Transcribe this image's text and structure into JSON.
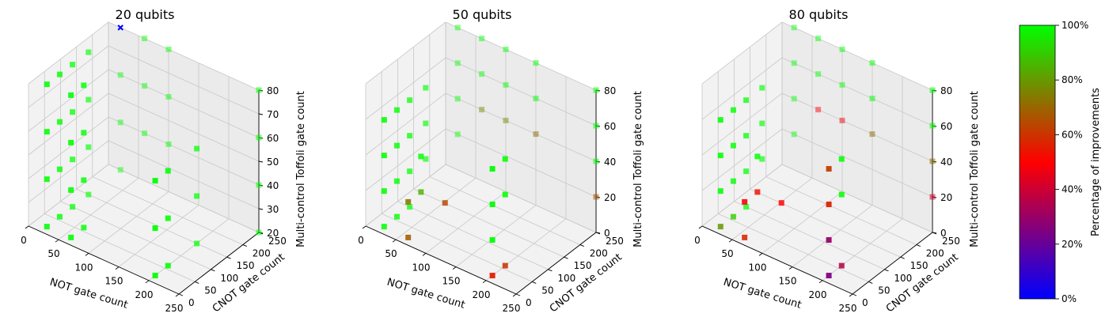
{
  "colorbar": {
    "label": "Percentage of improvements",
    "ticks": [
      "0%",
      "20%",
      "40%",
      "60%",
      "80%",
      "100%"
    ],
    "stops": [
      "#0000ff",
      "#ff0000",
      "#00ff00"
    ]
  },
  "chart_data": [
    {
      "type": "scatter3d",
      "title": "20 qubits",
      "xlabel": "NOT gate count",
      "ylabel": "CNOT gate count",
      "zlabel": "Multi-control Toffoli gate count",
      "xticks": [
        0,
        50,
        100,
        150,
        200,
        250
      ],
      "yticks": [
        0,
        50,
        100,
        150,
        200,
        250
      ],
      "zticks": [
        20,
        30,
        40,
        50,
        60,
        70,
        80
      ],
      "xlim": [
        0,
        250
      ],
      "ylim": [
        0,
        250
      ],
      "zlim": [
        20,
        80
      ],
      "grid": true,
      "note": "Marker color encodes percentage of improvements (colorbar); one point marked with x",
      "points": [
        {
          "x": 20,
          "y": 20,
          "z": 20,
          "pct": 100
        },
        {
          "x": 20,
          "y": 20,
          "z": 40,
          "pct": 100
        },
        {
          "x": 20,
          "y": 20,
          "z": 60,
          "pct": 100
        },
        {
          "x": 20,
          "y": 20,
          "z": 80,
          "pct": 100
        },
        {
          "x": 20,
          "y": 60,
          "z": 20,
          "pct": 100
        },
        {
          "x": 20,
          "y": 60,
          "z": 40,
          "pct": 100
        },
        {
          "x": 20,
          "y": 60,
          "z": 60,
          "pct": 100
        },
        {
          "x": 20,
          "y": 60,
          "z": 80,
          "pct": 100
        },
        {
          "x": 20,
          "y": 100,
          "z": 20,
          "pct": 100
        },
        {
          "x": 20,
          "y": 100,
          "z": 40,
          "pct": 100
        },
        {
          "x": 20,
          "y": 100,
          "z": 60,
          "pct": 100
        },
        {
          "x": 20,
          "y": 100,
          "z": 80,
          "pct": 100
        },
        {
          "x": 20,
          "y": 150,
          "z": 20,
          "pct": 100
        },
        {
          "x": 20,
          "y": 150,
          "z": 40,
          "pct": 100
        },
        {
          "x": 20,
          "y": 150,
          "z": 60,
          "pct": 100
        },
        {
          "x": 20,
          "y": 150,
          "z": 80,
          "pct": 100
        },
        {
          "x": 20,
          "y": 250,
          "z": 20,
          "pct": 100
        },
        {
          "x": 20,
          "y": 250,
          "z": 40,
          "pct": 100
        },
        {
          "x": 20,
          "y": 250,
          "z": 60,
          "pct": 100
        },
        {
          "x": 20,
          "y": 250,
          "z": 80,
          "pct": 100,
          "marker": "x",
          "color": "#0000ff"
        },
        {
          "x": 60,
          "y": 20,
          "z": 20,
          "pct": 100
        },
        {
          "x": 60,
          "y": 20,
          "z": 40,
          "pct": 100
        },
        {
          "x": 60,
          "y": 20,
          "z": 60,
          "pct": 100
        },
        {
          "x": 60,
          "y": 20,
          "z": 80,
          "pct": 100
        },
        {
          "x": 60,
          "y": 60,
          "z": 20,
          "pct": 100
        },
        {
          "x": 60,
          "y": 60,
          "z": 40,
          "pct": 100
        },
        {
          "x": 60,
          "y": 60,
          "z": 60,
          "pct": 100
        },
        {
          "x": 60,
          "y": 60,
          "z": 80,
          "pct": 100
        },
        {
          "x": 60,
          "y": 250,
          "z": 40,
          "pct": 100
        },
        {
          "x": 60,
          "y": 250,
          "z": 60,
          "pct": 100
        },
        {
          "x": 60,
          "y": 250,
          "z": 80,
          "pct": 100
        },
        {
          "x": 100,
          "y": 250,
          "z": 40,
          "pct": 100
        },
        {
          "x": 100,
          "y": 250,
          "z": 60,
          "pct": 100
        },
        {
          "x": 100,
          "y": 250,
          "z": 80,
          "pct": 100
        },
        {
          "x": 200,
          "y": 20,
          "z": 20,
          "pct": 100
        },
        {
          "x": 200,
          "y": 20,
          "z": 40,
          "pct": 100
        },
        {
          "x": 200,
          "y": 20,
          "z": 60,
          "pct": 100
        },
        {
          "x": 200,
          "y": 60,
          "z": 20,
          "pct": 100
        },
        {
          "x": 200,
          "y": 60,
          "z": 40,
          "pct": 100
        },
        {
          "x": 200,
          "y": 60,
          "z": 60,
          "pct": 100
        },
        {
          "x": 200,
          "y": 150,
          "z": 20,
          "pct": 100
        },
        {
          "x": 200,
          "y": 150,
          "z": 40,
          "pct": 100
        },
        {
          "x": 200,
          "y": 150,
          "z": 60,
          "pct": 100
        },
        {
          "x": 250,
          "y": 250,
          "z": 20,
          "pct": 100
        },
        {
          "x": 250,
          "y": 250,
          "z": 40,
          "pct": 100
        },
        {
          "x": 250,
          "y": 250,
          "z": 60,
          "pct": 100
        },
        {
          "x": 250,
          "y": 250,
          "z": 80,
          "pct": 100
        }
      ]
    },
    {
      "type": "scatter3d",
      "title": "50 qubits",
      "xlabel": "NOT gate count",
      "ylabel": "CNOT gate count",
      "zlabel": "Multi-control Toffoli gate count",
      "xticks": [
        0,
        50,
        100,
        150,
        200,
        250
      ],
      "yticks": [
        0,
        50,
        100,
        150,
        200,
        250
      ],
      "zticks": [
        0,
        20,
        40,
        60,
        80
      ],
      "xlim": [
        0,
        250
      ],
      "ylim": [
        0,
        250
      ],
      "zlim": [
        0,
        80
      ],
      "grid": true,
      "points": [
        {
          "x": 20,
          "y": 20,
          "z": 0,
          "pct": 100
        },
        {
          "x": 20,
          "y": 20,
          "z": 20,
          "pct": 100
        },
        {
          "x": 20,
          "y": 20,
          "z": 40,
          "pct": 100
        },
        {
          "x": 20,
          "y": 20,
          "z": 60,
          "pct": 100
        },
        {
          "x": 20,
          "y": 60,
          "z": 0,
          "pct": 100
        },
        {
          "x": 20,
          "y": 60,
          "z": 20,
          "pct": 100
        },
        {
          "x": 20,
          "y": 60,
          "z": 40,
          "pct": 100
        },
        {
          "x": 20,
          "y": 60,
          "z": 60,
          "pct": 100
        },
        {
          "x": 20,
          "y": 100,
          "z": 0,
          "pct": 100
        },
        {
          "x": 20,
          "y": 100,
          "z": 20,
          "pct": 100
        },
        {
          "x": 20,
          "y": 100,
          "z": 40,
          "pct": 100
        },
        {
          "x": 20,
          "y": 100,
          "z": 60,
          "pct": 100
        },
        {
          "x": 20,
          "y": 150,
          "z": 20,
          "pct": 100
        },
        {
          "x": 20,
          "y": 150,
          "z": 40,
          "pct": 100
        },
        {
          "x": 20,
          "y": 150,
          "z": 60,
          "pct": 100
        },
        {
          "x": 20,
          "y": 250,
          "z": 20,
          "pct": 100
        },
        {
          "x": 20,
          "y": 250,
          "z": 40,
          "pct": 100
        },
        {
          "x": 20,
          "y": 250,
          "z": 60,
          "pct": 100
        },
        {
          "x": 20,
          "y": 250,
          "z": 80,
          "pct": 100
        },
        {
          "x": 60,
          "y": 20,
          "z": 0,
          "pct": 68
        },
        {
          "x": 60,
          "y": 20,
          "z": 20,
          "pct": 74
        },
        {
          "x": 60,
          "y": 60,
          "z": 20,
          "pct": 85
        },
        {
          "x": 60,
          "y": 60,
          "z": 40,
          "pct": 100
        },
        {
          "x": 60,
          "y": 250,
          "z": 40,
          "pct": 78
        },
        {
          "x": 60,
          "y": 250,
          "z": 60,
          "pct": 100
        },
        {
          "x": 60,
          "y": 250,
          "z": 80,
          "pct": 100
        },
        {
          "x": 100,
          "y": 60,
          "z": 20,
          "pct": 64
        },
        {
          "x": 100,
          "y": 250,
          "z": 40,
          "pct": 78
        },
        {
          "x": 100,
          "y": 250,
          "z": 60,
          "pct": 100
        },
        {
          "x": 100,
          "y": 250,
          "z": 80,
          "pct": 100
        },
        {
          "x": 150,
          "y": 250,
          "z": 40,
          "pct": 72
        },
        {
          "x": 150,
          "y": 250,
          "z": 60,
          "pct": 100
        },
        {
          "x": 150,
          "y": 250,
          "z": 80,
          "pct": 100
        },
        {
          "x": 200,
          "y": 20,
          "z": 0,
          "pct": 55
        },
        {
          "x": 200,
          "y": 20,
          "z": 20,
          "pct": 100
        },
        {
          "x": 200,
          "y": 20,
          "z": 40,
          "pct": 100
        },
        {
          "x": 200,
          "y": 20,
          "z": 60,
          "pct": 100
        },
        {
          "x": 200,
          "y": 60,
          "z": 0,
          "pct": 60
        },
        {
          "x": 200,
          "y": 60,
          "z": 40,
          "pct": 100
        },
        {
          "x": 200,
          "y": 60,
          "z": 60,
          "pct": 100
        },
        {
          "x": 250,
          "y": 250,
          "z": 20,
          "pct": 66
        },
        {
          "x": 250,
          "y": 250,
          "z": 40,
          "pct": 100
        },
        {
          "x": 250,
          "y": 250,
          "z": 60,
          "pct": 100
        },
        {
          "x": 250,
          "y": 250,
          "z": 80,
          "pct": 100
        }
      ]
    },
    {
      "type": "scatter3d",
      "title": "80 qubits",
      "xlabel": "NOT gate count",
      "ylabel": "CNOT gate count",
      "zlabel": "Multi-control Toffoli gate count",
      "xticks": [
        0,
        50,
        100,
        150,
        200,
        250
      ],
      "yticks": [
        0,
        50,
        100,
        150,
        200,
        250
      ],
      "zticks": [
        0,
        20,
        40,
        60,
        80
      ],
      "xlim": [
        0,
        250
      ],
      "ylim": [
        0,
        250
      ],
      "zlim": [
        0,
        80
      ],
      "grid": true,
      "points": [
        {
          "x": 20,
          "y": 20,
          "z": 0,
          "pct": 80
        },
        {
          "x": 20,
          "y": 20,
          "z": 20,
          "pct": 100
        },
        {
          "x": 20,
          "y": 20,
          "z": 40,
          "pct": 100
        },
        {
          "x": 20,
          "y": 20,
          "z": 60,
          "pct": 100
        },
        {
          "x": 20,
          "y": 60,
          "z": 0,
          "pct": 90
        },
        {
          "x": 20,
          "y": 60,
          "z": 20,
          "pct": 100
        },
        {
          "x": 20,
          "y": 60,
          "z": 40,
          "pct": 100
        },
        {
          "x": 20,
          "y": 60,
          "z": 60,
          "pct": 100
        },
        {
          "x": 20,
          "y": 100,
          "z": 0,
          "pct": 100
        },
        {
          "x": 20,
          "y": 100,
          "z": 20,
          "pct": 100
        },
        {
          "x": 20,
          "y": 100,
          "z": 40,
          "pct": 100
        },
        {
          "x": 20,
          "y": 100,
          "z": 60,
          "pct": 100
        },
        {
          "x": 20,
          "y": 150,
          "z": 20,
          "pct": 100
        },
        {
          "x": 20,
          "y": 150,
          "z": 40,
          "pct": 100
        },
        {
          "x": 20,
          "y": 150,
          "z": 60,
          "pct": 100
        },
        {
          "x": 20,
          "y": 250,
          "z": 20,
          "pct": 100
        },
        {
          "x": 20,
          "y": 250,
          "z": 40,
          "pct": 100
        },
        {
          "x": 20,
          "y": 250,
          "z": 60,
          "pct": 100
        },
        {
          "x": 20,
          "y": 250,
          "z": 80,
          "pct": 100
        },
        {
          "x": 60,
          "y": 20,
          "z": 0,
          "pct": 58
        },
        {
          "x": 60,
          "y": 20,
          "z": 20,
          "pct": 48
        },
        {
          "x": 60,
          "y": 60,
          "z": 20,
          "pct": 52
        },
        {
          "x": 60,
          "y": 60,
          "z": 40,
          "pct": 100
        },
        {
          "x": 60,
          "y": 250,
          "z": 40,
          "pct": 50
        },
        {
          "x": 60,
          "y": 250,
          "z": 60,
          "pct": 100
        },
        {
          "x": 60,
          "y": 250,
          "z": 80,
          "pct": 100
        },
        {
          "x": 100,
          "y": 60,
          "z": 20,
          "pct": 50
        },
        {
          "x": 100,
          "y": 250,
          "z": 40,
          "pct": 48
        },
        {
          "x": 100,
          "y": 250,
          "z": 60,
          "pct": 100
        },
        {
          "x": 100,
          "y": 250,
          "z": 80,
          "pct": 100
        },
        {
          "x": 150,
          "y": 250,
          "z": 40,
          "pct": 72
        },
        {
          "x": 150,
          "y": 250,
          "z": 60,
          "pct": 100
        },
        {
          "x": 150,
          "y": 250,
          "z": 80,
          "pct": 100
        },
        {
          "x": 200,
          "y": 20,
          "z": 0,
          "pct": 25
        },
        {
          "x": 200,
          "y": 20,
          "z": 20,
          "pct": 30
        },
        {
          "x": 200,
          "y": 20,
          "z": 40,
          "pct": 56
        },
        {
          "x": 200,
          "y": 20,
          "z": 60,
          "pct": 62
        },
        {
          "x": 200,
          "y": 60,
          "z": 0,
          "pct": 36
        },
        {
          "x": 200,
          "y": 60,
          "z": 40,
          "pct": 100
        },
        {
          "x": 200,
          "y": 60,
          "z": 60,
          "pct": 100
        },
        {
          "x": 250,
          "y": 250,
          "z": 20,
          "pct": 42
        },
        {
          "x": 250,
          "y": 250,
          "z": 40,
          "pct": 72
        },
        {
          "x": 250,
          "y": 250,
          "z": 60,
          "pct": 100
        },
        {
          "x": 250,
          "y": 250,
          "z": 80,
          "pct": 100
        }
      ]
    }
  ]
}
